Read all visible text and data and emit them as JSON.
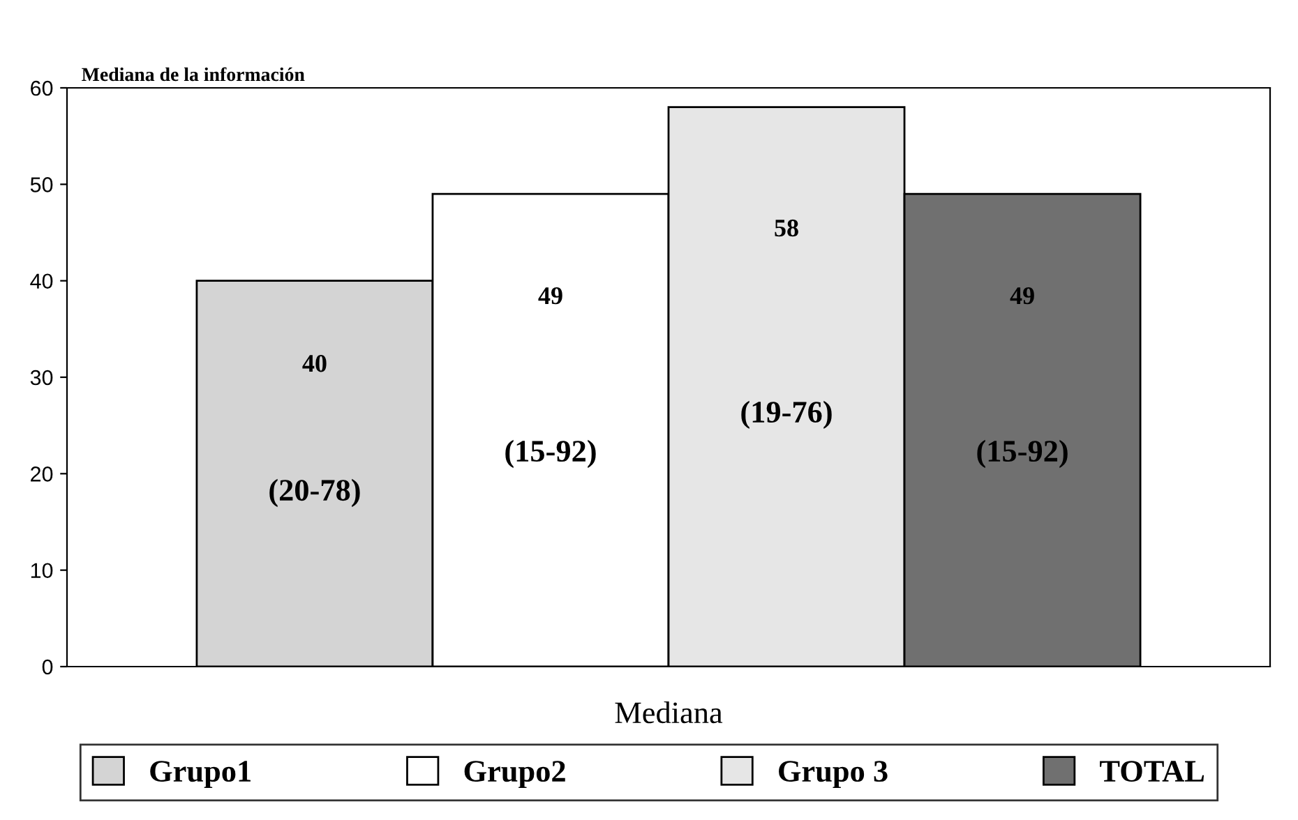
{
  "chart_data": {
    "type": "bar",
    "title": "Mediana de la información",
    "categories": [
      "Mediana"
    ],
    "series": [
      {
        "name": "Grupo1",
        "color": "#d4d4d4",
        "values": [
          40
        ]
      },
      {
        "name": "Grupo2",
        "color": "#ffffff",
        "values": [
          49
        ]
      },
      {
        "name": "Grupo 3",
        "color": "#e6e6e6",
        "values": [
          58
        ]
      },
      {
        "name": "TOTAL",
        "color": "#707070",
        "values": [
          49
        ]
      }
    ],
    "ylim": [
      0,
      60
    ],
    "yticks": [
      0,
      10,
      20,
      30,
      40,
      50,
      60
    ],
    "data_labels": true,
    "annotations": [
      "(20-78)",
      "(15-92)",
      "(19-76)",
      "(15-92)"
    ],
    "grid": false,
    "legend": "bottom"
  }
}
